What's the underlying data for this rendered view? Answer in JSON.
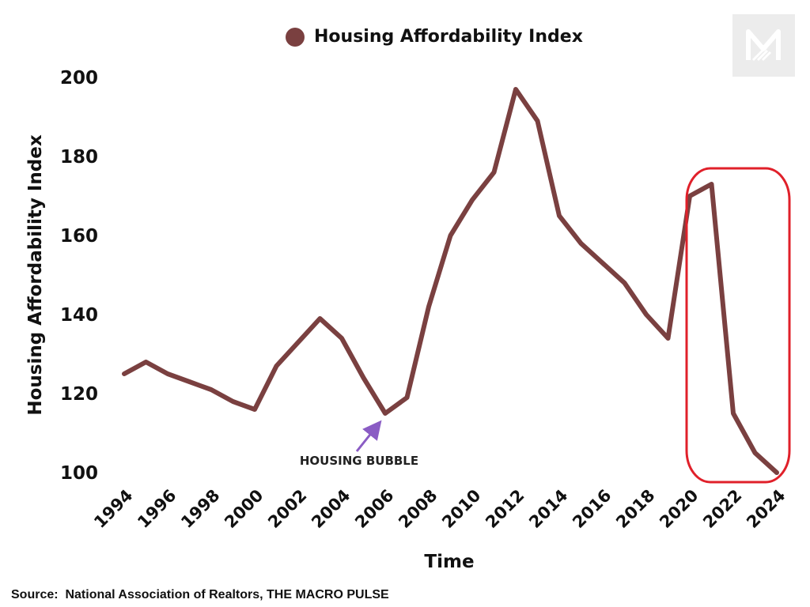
{
  "chart_data": {
    "type": "line",
    "legend": "Housing Affordability Index",
    "legend_position": "top",
    "ylabel": "Housing Affordability Index",
    "xlabel": "Time",
    "ylim": [
      100,
      200
    ],
    "y_ticks": [
      100,
      120,
      140,
      160,
      180,
      200
    ],
    "x_ticks": [
      1994,
      1996,
      1998,
      2000,
      2002,
      2004,
      2006,
      2008,
      2010,
      2012,
      2014,
      2016,
      2018,
      2020,
      2022,
      2024
    ],
    "grid": false,
    "series": [
      {
        "name": "Housing Affordability Index",
        "color": "#7a4040",
        "x": [
          1994,
          1995,
          1996,
          1997,
          1998,
          1999,
          2000,
          2001,
          2002,
          2003,
          2004,
          2005,
          2006,
          2007,
          2008,
          2009,
          2010,
          2011,
          2012,
          2013,
          2014,
          2015,
          2016,
          2017,
          2018,
          2019,
          2020,
          2021,
          2022,
          2023,
          2024
        ],
        "values": [
          125,
          128,
          125,
          123,
          121,
          118,
          116,
          127,
          133,
          139,
          134,
          124,
          115,
          119,
          142,
          160,
          169,
          176,
          197,
          189,
          165,
          158,
          153,
          148,
          140,
          134,
          170,
          173,
          115,
          105,
          100
        ]
      }
    ],
    "reference_line": {
      "value": 115,
      "color": "#8a5cc4"
    },
    "annotations": [
      {
        "text": "HOUSING BUBBLE",
        "target_x": 2006,
        "target_y": 115,
        "color": "#8a5cc4"
      }
    ],
    "highlight": {
      "x_from": 2020,
      "x_to": 2024,
      "color": "#e0202a"
    }
  },
  "source_text": "Source:  National Association of Realtors, THE MACRO PULSE",
  "logo_icon": "macro-pulse-logo-icon"
}
